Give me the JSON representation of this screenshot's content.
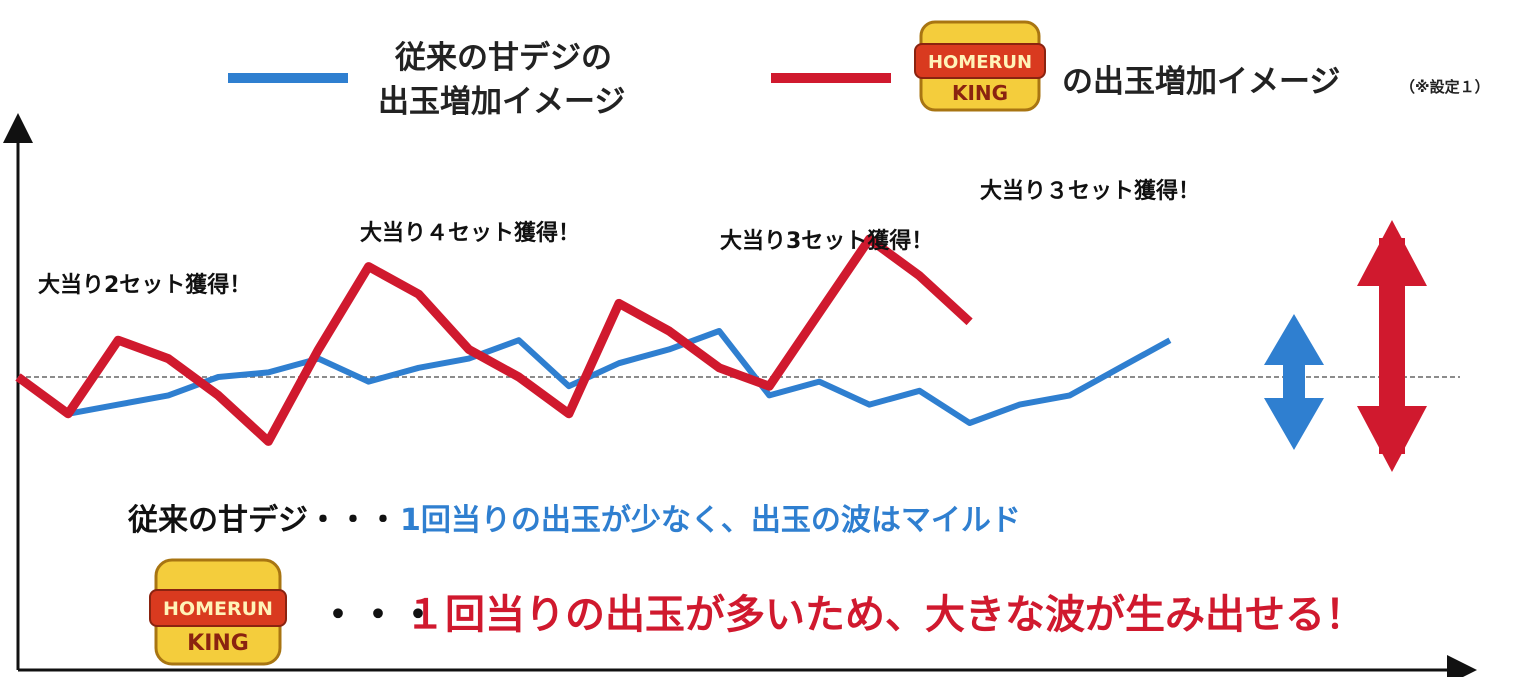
{
  "legend": {
    "conventional_line1": "従来の甘デジの",
    "conventional_line2": "出玉増加イメージ",
    "homerun_label": "の出玉増加イメージ",
    "homerun_note": "（※設定１）"
  },
  "logo": {
    "line1": "HOMERUN",
    "line2": "KING"
  },
  "annotations": [
    "大当り2セット獲得！",
    "大当り４セット獲得！",
    "大当り3セット獲得！",
    "大当り３セット獲得！"
  ],
  "captions": {
    "conventional_label": "従来の甘デジ・・・",
    "conventional_desc": "1回当りの出玉が少なく、出玉の波はマイルド",
    "homerun_prefix": "・・・",
    "homerun_desc": "１回当りの出玉が多いため、大きな波が生み出せる！"
  },
  "colors": {
    "conventional": "#2f7fd0",
    "homerun": "#d0192e",
    "baseline": "#666666",
    "axis": "#111111",
    "logo_gold": "#e8b828",
    "logo_red": "#c8282e"
  },
  "chart_data": {
    "type": "line",
    "x": [
      0,
      1,
      2,
      3,
      4,
      5,
      6,
      7,
      8,
      9,
      10,
      11,
      12,
      13,
      14,
      15,
      16,
      17,
      18,
      19,
      20,
      21,
      22,
      23,
      24
    ],
    "series": [
      {
        "name": "従来の甘デジの出玉増加イメージ",
        "values": [
          0,
          -8,
          -6,
          -4,
          0,
          1,
          4,
          -1,
          2,
          4,
          8,
          -2,
          3,
          6,
          10,
          -4,
          -1,
          -6,
          -3,
          -10,
          -6,
          -4,
          2,
          8,
          null
        ]
      },
      {
        "name": "の出玉増加イメージ",
        "values": [
          0,
          -8,
          8,
          4,
          -4,
          -14,
          6,
          24,
          18,
          6,
          0,
          -8,
          16,
          10,
          2,
          -2,
          14,
          30,
          22,
          12,
          null,
          null,
          null,
          null,
          null
        ]
      }
    ],
    "grid": false,
    "legend": "top"
  }
}
